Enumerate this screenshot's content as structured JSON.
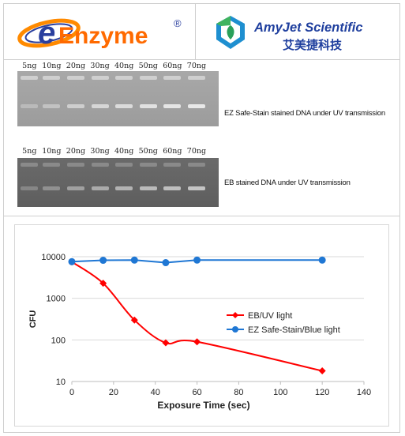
{
  "header": {
    "left_logo_text": "eEnzyme",
    "left_logo_mark": "®",
    "right_logo_text": "AmyJet Scientific",
    "right_logo_cn": "艾美捷科技"
  },
  "gels": [
    {
      "caption": "EZ Safe-Stain stained DNA under UV transmission",
      "lanes": [
        "5ng",
        "10ng",
        "20ng",
        "30ng",
        "40ng",
        "50ng",
        "60ng",
        "70ng"
      ],
      "well_color": "#cfcfcf",
      "band_color": "#ececec"
    },
    {
      "caption": "EB stained DNA under UV transmission",
      "lanes": [
        "5ng",
        "10ng",
        "20ng",
        "30ng",
        "40ng",
        "50ng",
        "60ng",
        "70ng"
      ],
      "well_color": "#8a8a8a",
      "band_color": "#c9c9c9"
    }
  ],
  "chart_data": {
    "type": "line",
    "xlabel": "Exposure Time (sec)",
    "ylabel": "CFU",
    "y_scale": "log",
    "xlim": [
      0,
      140
    ],
    "ylim": [
      10,
      10000
    ],
    "x_ticks": [
      "0",
      "20",
      "40",
      "60",
      "80",
      "100",
      "120",
      "140"
    ],
    "y_ticks": [
      "10",
      "100",
      "1000",
      "10000"
    ],
    "grid": "horizontal",
    "legend_position": "center-right",
    "series": [
      {
        "name": "EB/UV light",
        "color": "#ff0000",
        "marker": "diamond",
        "x": [
          0,
          15,
          30,
          45,
          60,
          120
        ],
        "y": [
          7500,
          2300,
          300,
          85,
          90,
          18
        ]
      },
      {
        "name": "EZ Safe-Stain/Blue light",
        "color": "#1f77d4",
        "marker": "circle",
        "x": [
          0,
          15,
          30,
          45,
          60,
          120
        ],
        "y": [
          7600,
          8200,
          8300,
          7200,
          8300,
          8300
        ]
      }
    ]
  }
}
